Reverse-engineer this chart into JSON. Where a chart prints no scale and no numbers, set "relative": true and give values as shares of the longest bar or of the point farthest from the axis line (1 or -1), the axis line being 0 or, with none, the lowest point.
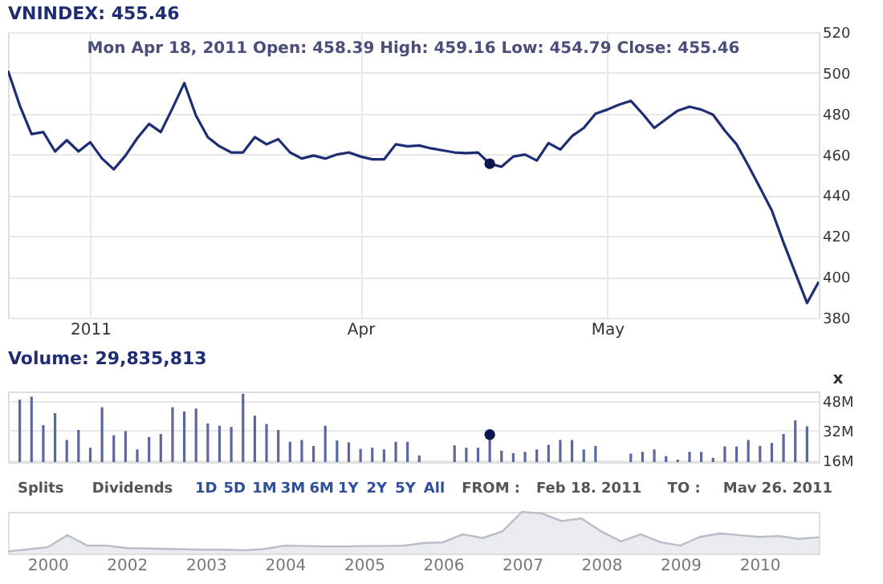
{
  "chart_data": [
    {
      "type": "line",
      "title": "VNINDEX: 455.46",
      "annotations": [
        "Mon Apr 18, 2011   Open: 458.39   High: 459.16   Low: 454.79   Close: 455.46"
      ],
      "categories": [
        null,
        null,
        null,
        null,
        null,
        null,
        null,
        "2011",
        null,
        null,
        null,
        null,
        null,
        null,
        null,
        null,
        null,
        null,
        null,
        null,
        null,
        null,
        null,
        null,
        null,
        null,
        null,
        null,
        null,
        null,
        "Apr",
        null,
        null,
        null,
        null,
        null,
        null,
        null,
        null,
        null,
        null,
        null,
        null,
        null,
        null,
        null,
        null,
        null,
        null,
        null,
        null,
        "May",
        null,
        null,
        null,
        null,
        null,
        null,
        null,
        null,
        null,
        null,
        null,
        null,
        null,
        null,
        null,
        null,
        null,
        null
      ],
      "series": [
        {
          "color": "#1f2d75",
          "values": [
            501,
            484,
            470,
            471,
            461.5,
            467,
            461.5,
            466,
            458,
            452.7,
            459.5,
            468,
            475,
            471,
            482.7,
            495,
            479,
            468.5,
            464,
            461,
            461,
            468.5,
            465,
            467.5,
            461,
            458,
            459.5,
            458,
            460,
            461,
            459,
            457.6,
            457.6,
            465,
            464,
            464.4,
            463,
            462,
            461,
            460.7,
            461,
            455.46,
            454,
            459,
            460,
            457,
            465.6,
            462.4,
            469,
            473,
            480,
            482,
            484.4,
            486.3,
            480,
            473,
            477.3,
            481.5,
            483.4,
            482,
            479.5,
            471.7,
            465,
            454.6,
            443.7,
            432.6,
            416.8,
            402,
            387.2,
            397.6
          ]
        },
        {
          "type": "scatter",
          "color": "#0d1850",
          "values": [
            null,
            null,
            null,
            null,
            null,
            null,
            null,
            null,
            null,
            null,
            null,
            null,
            null,
            null,
            null,
            null,
            null,
            null,
            null,
            null,
            null,
            null,
            null,
            null,
            null,
            null,
            null,
            null,
            null,
            null,
            null,
            null,
            null,
            null,
            null,
            null,
            null,
            null,
            null,
            null,
            null,
            455.46,
            null,
            null,
            null,
            null,
            null,
            null,
            null,
            null,
            null,
            null,
            null,
            null,
            null,
            null,
            null,
            null,
            null,
            null,
            null,
            null,
            null,
            null,
            null,
            null,
            null,
            null,
            null,
            null
          ]
        }
      ],
      "ylim": [
        380,
        520
      ],
      "yticks": [
        380,
        400,
        420,
        440,
        460,
        480,
        500,
        520
      ],
      "grid": true,
      "line_style": "solid"
    },
    {
      "type": "bar",
      "title": "Volume: 29,835,813",
      "annotations": [
        "x",
        "Splits",
        "Dividends",
        "1D",
        "5D",
        "1M",
        "3M",
        "6M",
        "1Y",
        "2Y",
        "5Y",
        "All",
        "FROM :",
        "Feb 18. 2011",
        "TO :",
        "Mav 26. 2011"
      ],
      "categories": [
        null,
        null,
        null,
        null,
        null,
        null,
        null,
        null,
        null,
        null,
        null,
        null,
        null,
        null,
        null,
        null,
        null,
        null,
        null,
        null,
        null,
        null,
        null,
        null,
        null,
        null,
        null,
        null,
        null,
        null,
        null,
        null,
        null,
        null,
        null,
        null,
        null,
        null,
        null,
        null,
        null,
        null,
        null,
        null,
        null,
        null,
        null,
        null,
        null,
        null,
        null,
        null,
        null,
        null,
        null,
        null,
        null,
        null,
        null,
        null,
        null,
        null,
        null,
        null,
        null,
        null,
        null,
        null,
        null,
        null
      ],
      "series": [
        {
          "color": "#5b679e",
          "values": [
            null,
            48.6,
            50.2,
            34.9,
            41.3,
            26.9,
            32.3,
            22.7,
            44.5,
            29.4,
            31.7,
            21.8,
            28.5,
            30.1,
            44.5,
            42.2,
            43.8,
            35.8,
            34.6,
            33.9,
            51.8,
            40,
            35.5,
            32.3,
            25.9,
            26.9,
            23.7,
            34.6,
            26.6,
            25.6,
            22.1,
            22.7,
            21.8,
            25.9,
            25.9,
            18.6,
            null,
            null,
            24,
            22.7,
            22.7,
            29.8,
            21.1,
            19.8,
            20.5,
            21.8,
            24.3,
            26.9,
            26.9,
            21.8,
            23.7,
            null,
            null,
            19.5,
            20.5,
            21.8,
            18.2,
            16.3,
            20.5,
            20.5,
            17.3,
            23.4,
            23.4,
            26.9,
            23.7,
            25.3,
            30.1,
            37.4,
            34.2,
            null
          ]
        },
        {
          "type": "scatter",
          "color": "#0d1850",
          "values": [
            null,
            null,
            null,
            null,
            null,
            null,
            null,
            null,
            null,
            null,
            null,
            null,
            null,
            null,
            null,
            null,
            null,
            null,
            null,
            null,
            null,
            null,
            null,
            null,
            null,
            null,
            null,
            null,
            null,
            null,
            null,
            null,
            null,
            null,
            null,
            null,
            null,
            null,
            null,
            null,
            null,
            29.8,
            null,
            null,
            null,
            null,
            null,
            null,
            null,
            null,
            null,
            null,
            null,
            null,
            null,
            null,
            null,
            null,
            null,
            null,
            null,
            null,
            null,
            null,
            null,
            null,
            null,
            null,
            null,
            null
          ]
        }
      ],
      "ylim": [
        15,
        53
      ],
      "yticks": [
        {
          "value": 16,
          "label": "16M"
        },
        {
          "value": 32,
          "label": "32M"
        },
        {
          "value": 48,
          "label": "48M"
        }
      ],
      "grid": "y",
      "tick_labels": "y"
    },
    {
      "type": "area",
      "relative": true,
      "tick_labels": "x",
      "categories": [
        null,
        null,
        "2000",
        null,
        null,
        null,
        "2002",
        null,
        null,
        null,
        "2003",
        null,
        null,
        null,
        "2004",
        null,
        null,
        null,
        "2005",
        null,
        null,
        null,
        "2006",
        null,
        null,
        null,
        "2007",
        null,
        null,
        null,
        "2008",
        null,
        null,
        null,
        "2009",
        null,
        null,
        null,
        "2010",
        null,
        null,
        null
      ],
      "series": [
        {
          "color": "#b8bdc8",
          "values": [
            0.05,
            0.1,
            0.15,
            0.44,
            0.19,
            0.19,
            0.13,
            0.12,
            0.11,
            0.1,
            0.09,
            0.09,
            0.08,
            0.11,
            0.19,
            0.18,
            0.17,
            0.17,
            0.18,
            0.18,
            0.19,
            0.25,
            0.27,
            0.46,
            0.37,
            0.53,
            1,
            0.96,
            0.78,
            0.84,
            0.53,
            0.29,
            0.46,
            0.27,
            0.19,
            0.4,
            0.48,
            0.44,
            0.4,
            0.42,
            0.35,
            0.39
          ]
        }
      ],
      "grid": false
    }
  ]
}
